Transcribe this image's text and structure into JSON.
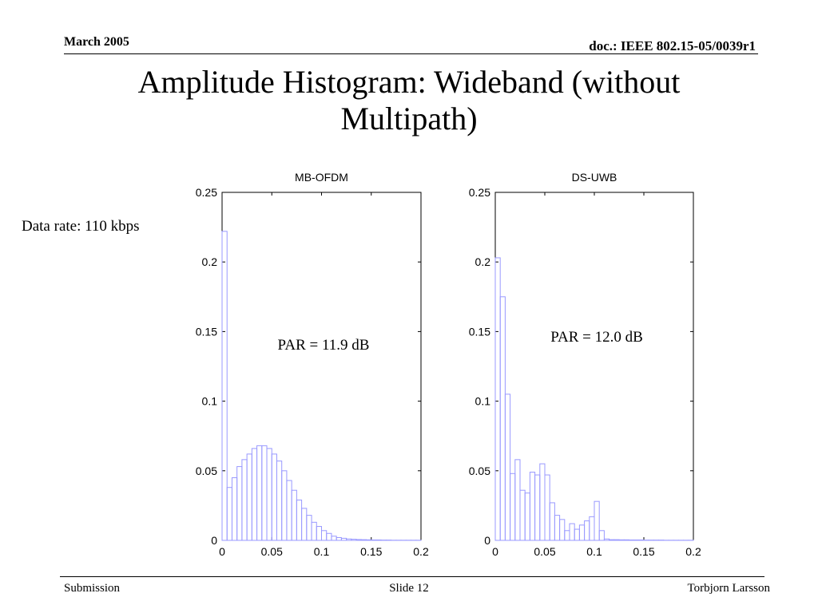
{
  "header": {
    "date": "March 2005",
    "doc": "doc.: IEEE 802.15-05/0039r1"
  },
  "slide_title_line1": "Amplitude Histogram: Wideband (without",
  "slide_title_line2": "Multipath)",
  "side_note": "Data rate: 110 kbps",
  "footer": {
    "left": "Submission",
    "center": "Slide 12",
    "right": "Torbjorn Larsson"
  },
  "colors": {
    "series": "#9999ff",
    "axes": "#000000"
  },
  "chart_data": [
    {
      "type": "histogram",
      "title": "MB-OFDM",
      "annotation": "PAR = 11.9 dB",
      "xlim": [
        0,
        0.2
      ],
      "ylim": [
        0,
        0.25
      ],
      "xticks": [
        0,
        0.05,
        0.1,
        0.15,
        0.2
      ],
      "xtick_labels": [
        "0",
        "0.05",
        "0.1",
        "0.15",
        "0.2"
      ],
      "yticks": [
        0,
        0.05,
        0.1,
        0.15,
        0.2,
        0.25
      ],
      "ytick_labels": [
        "0",
        "0.05",
        "0.1",
        "0.15",
        "0.2",
        "0.25"
      ],
      "grid": false,
      "bin_width": 0.005,
      "values": [
        0.222,
        0.038,
        0.045,
        0.053,
        0.058,
        0.062,
        0.066,
        0.068,
        0.068,
        0.066,
        0.062,
        0.057,
        0.05,
        0.043,
        0.036,
        0.029,
        0.023,
        0.018,
        0.013,
        0.01,
        0.007,
        0.005,
        0.003,
        0.002,
        0.0015,
        0.001,
        0.0008,
        0.0006,
        0.0005,
        0.0004,
        0.0003,
        0.0003,
        0.0002,
        0.0002,
        0.0001,
        0.0001,
        0.0001,
        0.0001,
        0.0001,
        0.0001
      ]
    },
    {
      "type": "histogram",
      "title": "DS-UWB",
      "annotation": "PAR = 12.0 dB",
      "xlim": [
        0,
        0.2
      ],
      "ylim": [
        0,
        0.25
      ],
      "xticks": [
        0,
        0.05,
        0.1,
        0.15,
        0.2
      ],
      "xtick_labels": [
        "0",
        "0.05",
        "0.1",
        "0.15",
        "0.2"
      ],
      "yticks": [
        0,
        0.05,
        0.1,
        0.15,
        0.2,
        0.25
      ],
      "ytick_labels": [
        "0",
        "0.05",
        "0.1",
        "0.15",
        "0.2",
        "0.25"
      ],
      "grid": false,
      "bin_width": 0.005,
      "values": [
        0.203,
        0.175,
        0.105,
        0.048,
        0.058,
        0.036,
        0.034,
        0.049,
        0.047,
        0.055,
        0.047,
        0.027,
        0.018,
        0.015,
        0.007,
        0.012,
        0.008,
        0.011,
        0.014,
        0.017,
        0.028,
        0.007,
        0.001,
        0.0005,
        0.0005,
        0.0004,
        0.0004,
        0.0003,
        0.0003,
        0.0003,
        0.0002,
        0.0002,
        0.0002,
        0.0002,
        0.0001,
        0.0001,
        0.0001,
        0.0001,
        0.0001,
        0.0001
      ]
    }
  ]
}
